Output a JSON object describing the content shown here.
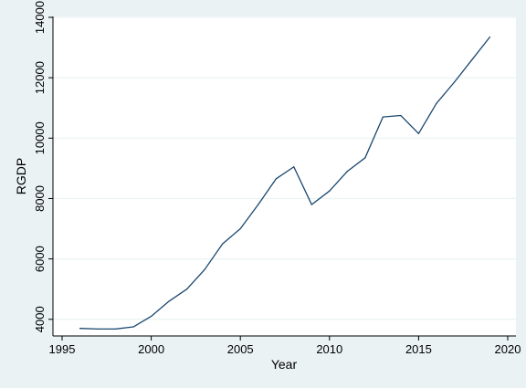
{
  "chart_data": {
    "type": "line",
    "title": "",
    "xlabel": "Year",
    "ylabel": "RGDP",
    "xlim": [
      1995,
      2020
    ],
    "ylim": [
      3600,
      14000
    ],
    "x_ticks": [
      1995,
      2000,
      2005,
      2010,
      2015,
      2020
    ],
    "y_ticks": [
      4000,
      6000,
      8000,
      10000,
      12000,
      14000
    ],
    "grid": true,
    "line_color": "#1a476f",
    "series": [
      {
        "x": [
          1996,
          1997,
          1998,
          1999,
          2000,
          2001,
          2002,
          2003,
          2004,
          2005,
          2006,
          2007,
          2008,
          2009,
          2010,
          2011,
          2012,
          2013,
          2014,
          2015,
          2016,
          2017,
          2018,
          2019
        ],
        "y": [
          3700,
          3680,
          3680,
          3750,
          4100,
          4600,
          5000,
          5650,
          6500,
          7000,
          7800,
          8650,
          9050,
          7800,
          8250,
          8900,
          9350,
          10700,
          10750,
          10150,
          11150,
          11850,
          12600,
          13350
        ]
      }
    ]
  }
}
